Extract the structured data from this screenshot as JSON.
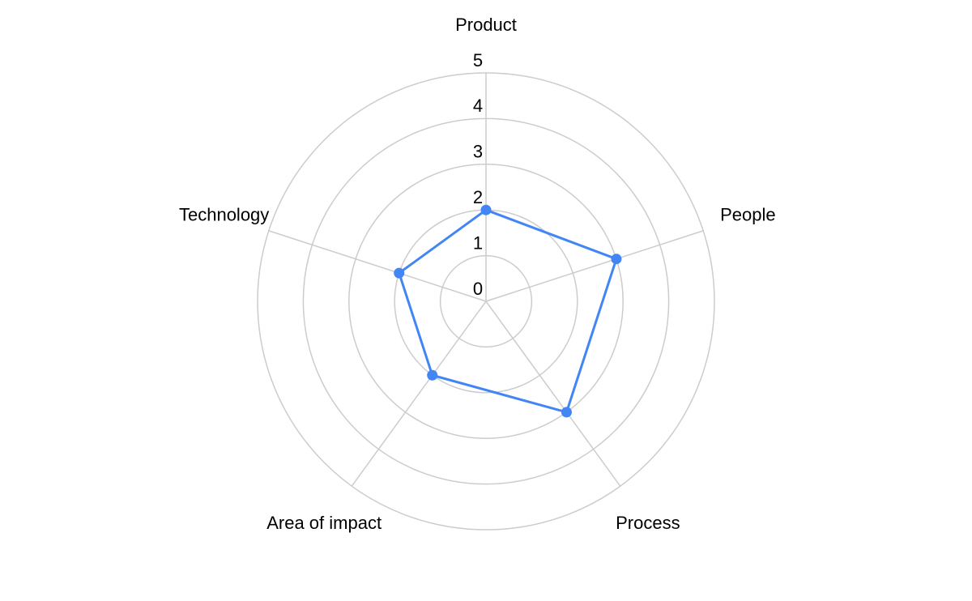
{
  "chart_data": {
    "type": "radar",
    "categories": [
      "Product",
      "People",
      "Process",
      "Area of impact",
      "Technology"
    ],
    "values": [
      2,
      3,
      3,
      2,
      2
    ],
    "color": "#4285f4",
    "ylim": [
      0,
      5
    ],
    "yticks": [
      0,
      1,
      2,
      3,
      4,
      5
    ],
    "grid": true
  }
}
